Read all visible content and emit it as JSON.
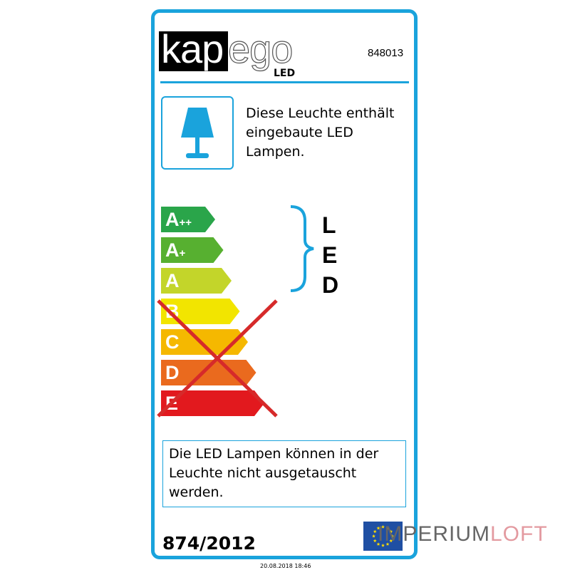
{
  "brand": {
    "logo_text": "kapego",
    "logo_sub": "LED"
  },
  "product_code": "848013",
  "info_text": "Diese Leuchte enthält eingebaute LED Lampen.",
  "energy_classes": [
    {
      "label": "A",
      "sup": "++",
      "color": "#2aa54a"
    },
    {
      "label": "A",
      "sup": "+",
      "color": "#57b030"
    },
    {
      "label": "A",
      "sup": "",
      "color": "#c3d52a"
    },
    {
      "label": "B",
      "sup": "",
      "color": "#f2e500"
    },
    {
      "label": "C",
      "sup": "",
      "color": "#f5b800"
    },
    {
      "label": "D",
      "sup": "",
      "color": "#ea6a1e"
    },
    {
      "label": "E",
      "sup": "",
      "color": "#e2191e"
    }
  ],
  "compatible_classes_bracket": [
    "A++",
    "A+",
    "A"
  ],
  "crossed_out_classes": [
    "B",
    "C",
    "D",
    "E"
  ],
  "lamp_type": [
    "L",
    "E",
    "D"
  ],
  "note_text": "Die LED Lampen können in der Leuchte nicht ausgetauscht werden.",
  "regulation": "874/2012",
  "watermark": {
    "part1": "IMPERIUM",
    "part2": "LOFT"
  },
  "date": "20.08.2018 18:46",
  "colors": {
    "frame": "#1aa3dc",
    "cross": "#d62a2a"
  }
}
